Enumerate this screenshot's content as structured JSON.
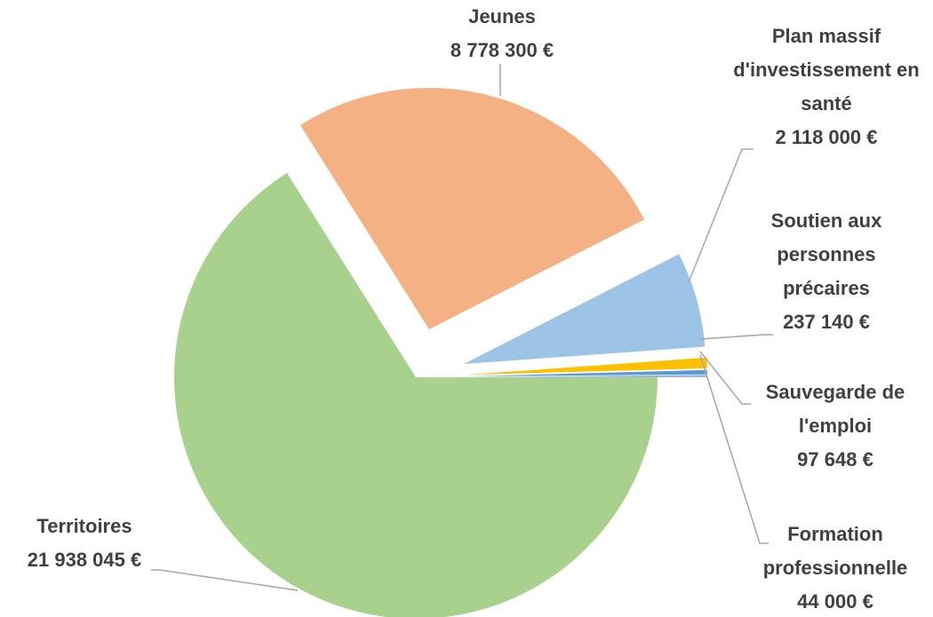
{
  "chart_data": {
    "type": "pie",
    "categories": [
      "Territoires",
      "Jeunes",
      "Plan massif d'investissement en santé",
      "Soutien aux personnes précaires",
      "Sauvegarde de l'emploi",
      "Formation professionnelle"
    ],
    "values": [
      21938045,
      8778300,
      2118000,
      237140,
      97648,
      44000
    ],
    "value_labels": [
      "21 938 045 €",
      "8 778 300 €",
      "2 118 000 €",
      "237 140 €",
      "97 648 €",
      "44 000 €"
    ],
    "colors": [
      "#a9d18e",
      "#f4b183",
      "#9dc3e6",
      "#ffc000",
      "#5b9bd5",
      "#8faadc"
    ]
  }
}
